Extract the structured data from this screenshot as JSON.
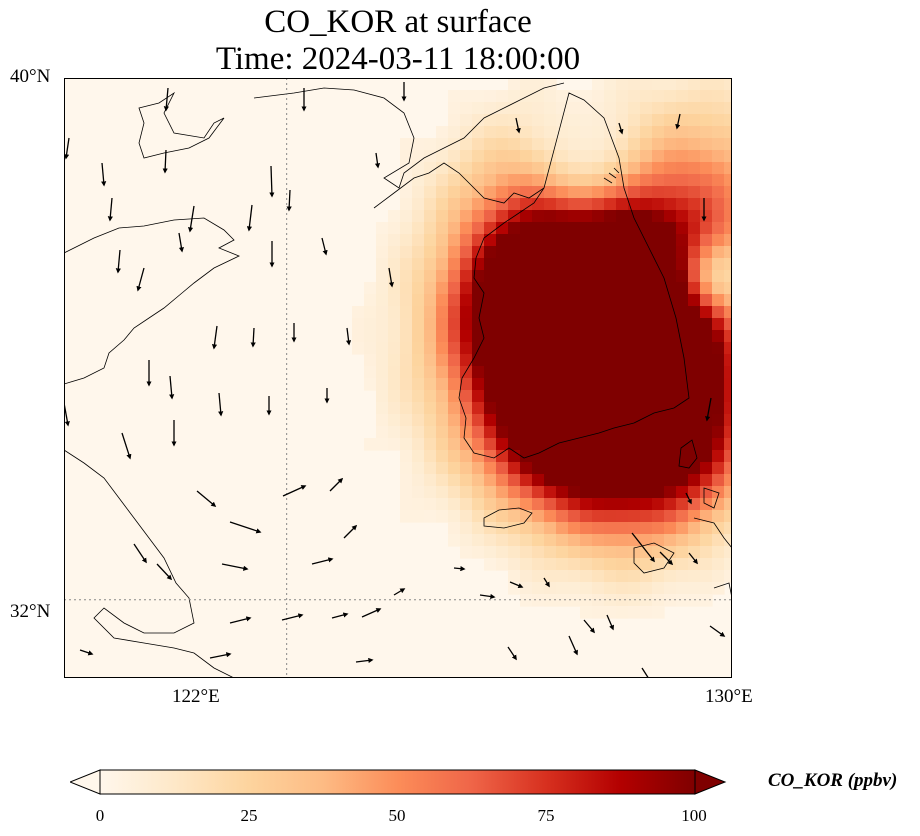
{
  "title_line1": "CO_KOR at surface",
  "title_line2": "Time: 2024-03-11 18:00:00",
  "map": {
    "lon_range": [
      118,
      130
    ],
    "lat_range": [
      30.8,
      40
    ],
    "y_ticks": [
      "40°N",
      "32°N"
    ],
    "x_ticks": [
      "122°E",
      "130°E"
    ],
    "gridlines": {
      "lon": [
        122
      ],
      "lat": [
        32
      ],
      "style": "dotted"
    },
    "colormap": "OrRd",
    "field_colors": {
      "low": "#fff7ec",
      "mid": "#fc8d59",
      "high": "#7f0000"
    }
  },
  "colorbar": {
    "label": "CO_KOR (ppbv)",
    "min": 0,
    "max": 100,
    "ticks": [
      "0",
      "25",
      "50",
      "75",
      "100"
    ],
    "extend": "both",
    "stops": [
      "#fff7ec",
      "#fee8c8",
      "#fdd49e",
      "#fdbb84",
      "#fc8d59",
      "#ef6548",
      "#d7301f",
      "#b30000",
      "#7f0000"
    ]
  }
}
